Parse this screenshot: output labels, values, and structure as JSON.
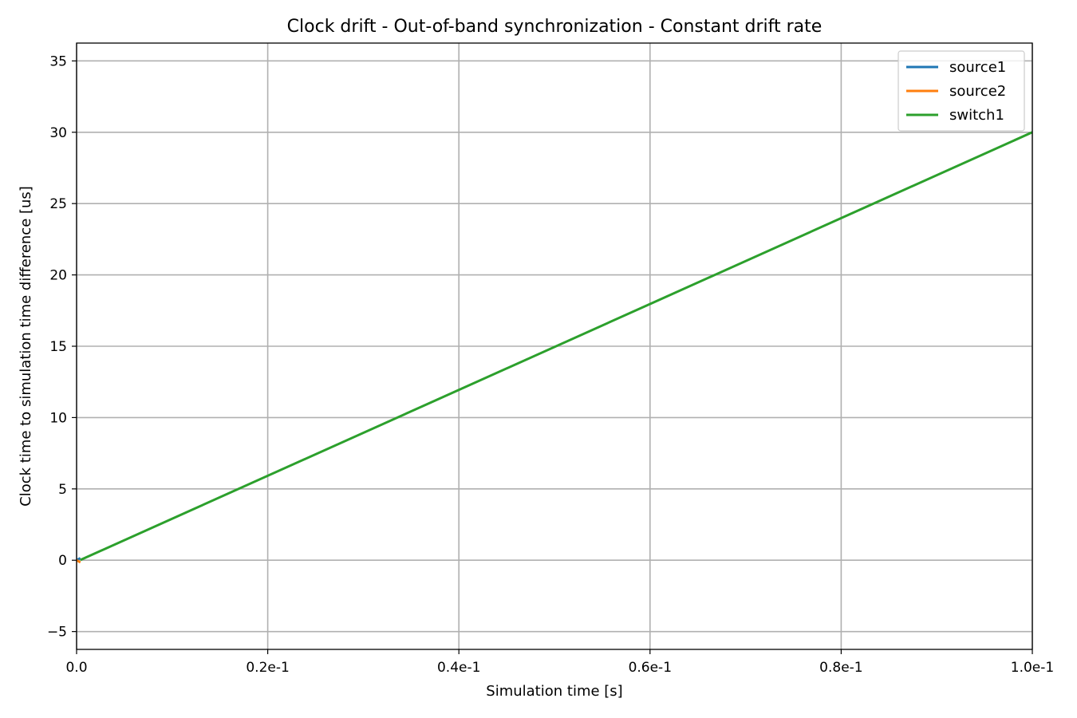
{
  "chart_data": {
    "type": "line",
    "title": "Clock drift - Out-of-band synchronization - Constant drift rate",
    "xlabel": "Simulation time [s]",
    "ylabel": "Clock time to simulation time difference [us]",
    "xlim": [
      0,
      0.1
    ],
    "ylim": [
      -6.25,
      36.25
    ],
    "xticks": [
      0,
      0.02,
      0.04,
      0.06,
      0.08,
      0.1
    ],
    "xtick_labels": [
      "0.0",
      "0.2e-1",
      "0.4e-1",
      "0.6e-1",
      "0.8e-1",
      "1.0e-1"
    ],
    "yticks": [
      -5,
      0,
      5,
      10,
      15,
      20,
      25,
      30,
      35
    ],
    "ytick_labels": [
      "−5",
      "0",
      "5",
      "10",
      "15",
      "20",
      "25",
      "30",
      "35"
    ],
    "grid": true,
    "legend_position": "top-right",
    "series": [
      {
        "name": "source1",
        "color": "#1f77b4",
        "x": [
          0,
          0.0004,
          0.0004
        ],
        "y": [
          0,
          0.15,
          0.15
        ]
      },
      {
        "name": "source2",
        "color": "#ff7f0e",
        "x": [
          0,
          0.0004,
          0.0004
        ],
        "y": [
          0,
          -0.15,
          -0.15
        ]
      },
      {
        "name": "switch1",
        "color": "#2ca02c",
        "x": [
          0.0004,
          0.1
        ],
        "y": [
          0.02,
          30
        ]
      }
    ]
  }
}
